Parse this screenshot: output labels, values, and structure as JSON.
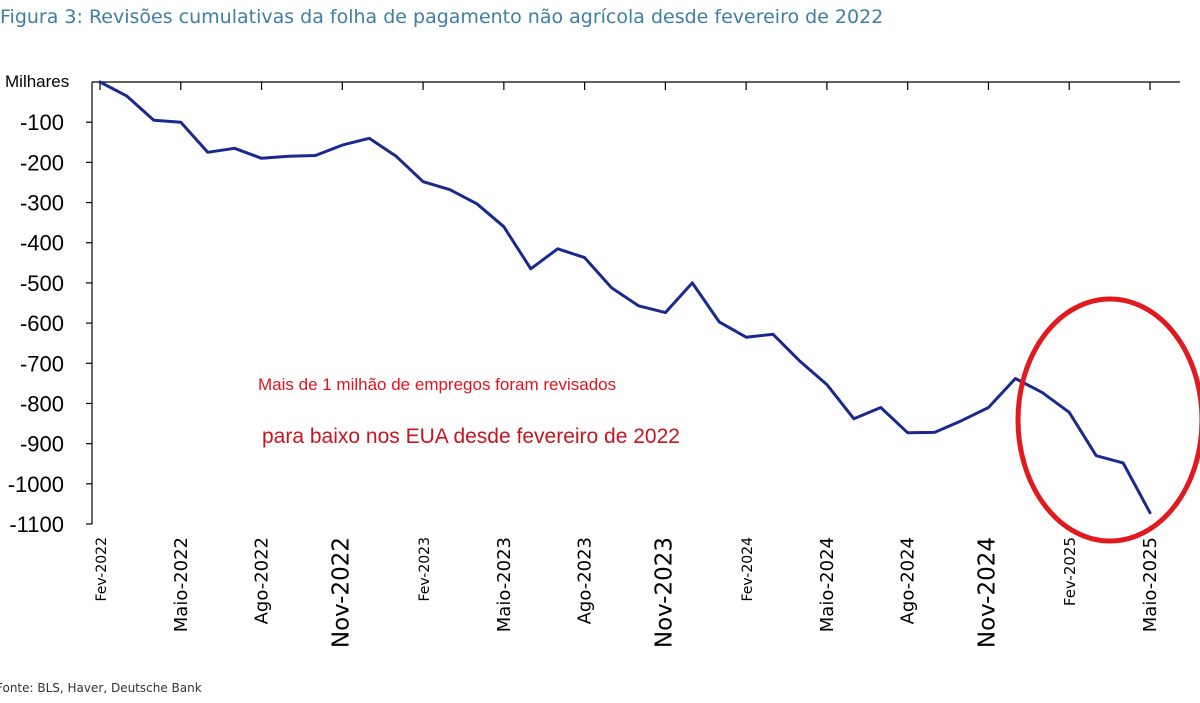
{
  "title": "Figura 3: Revisões cumulativas da folha de pagamento não agrícola desde fevereiro de 2022",
  "source": "Fonte: BLS, Haver, Deutsche Bank",
  "chart_data": {
    "type": "line",
    "ylabel": "Milhares",
    "ylim": [
      -1100,
      0
    ],
    "yticks": [
      -100,
      -200,
      -300,
      -400,
      -500,
      -600,
      -700,
      -800,
      -900,
      -1000,
      -1100
    ],
    "x": [
      "Fev-2022",
      "Mar-2022",
      "Abr-2022",
      "Maio-2022",
      "Jun-2022",
      "Jul-2022",
      "Ago-2022",
      "Set-2022",
      "Out-2022",
      "Nov-2022",
      "Dez-2022",
      "Jan-2023",
      "Fev-2023",
      "Mar-2023",
      "Abr-2023",
      "Maio-2023",
      "Jun-2023",
      "Jul-2023",
      "Ago-2023",
      "Set-2023",
      "Out-2023",
      "Nov-2023",
      "Dez-2023",
      "Jan-2024",
      "Fev-2024",
      "Mar-2024",
      "Abr-2024",
      "Maio-2024",
      "Jun-2024",
      "Jul-2024",
      "Ago-2024",
      "Set-2024",
      "Out-2024",
      "Nov-2024",
      "Dez-2024",
      "Jan-2025",
      "Fev-2025",
      "Mar-2025",
      "Abr-2025",
      "Maio-2025"
    ],
    "xticks": [
      "Fev-2022",
      "Maio-2022",
      "Ago-2022",
      "Nov-2022",
      "Fev-2023",
      "Maio-2023",
      "Ago-2023",
      "Nov-2023",
      "Fev-2024",
      "Maio-2024",
      "Ago-2024",
      "Nov-2024",
      "Fev-2025",
      "Maio-2025"
    ],
    "series": [
      {
        "name": "Revisões cumulativas",
        "color": "#1a2a8c",
        "values": [
          0,
          -35,
          -95,
          -100,
          -175,
          -165,
          -190,
          -185,
          -183,
          -157,
          -140,
          -185,
          -248,
          -268,
          -303,
          -360,
          -465,
          -415,
          -437,
          -512,
          -557,
          -574,
          -500,
          -597,
          -635,
          -628,
          -695,
          -753,
          -838,
          -810,
          -873,
          -872,
          -843,
          -810,
          -738,
          -773,
          -822,
          -930,
          -948,
          -1072
        ]
      }
    ],
    "annotations": [
      "Mais de 1 milhão de empregos foram revisados",
      "para baixo nos EUA desde fevereiro de 2022"
    ],
    "highlight_color": "#e11a1f"
  }
}
